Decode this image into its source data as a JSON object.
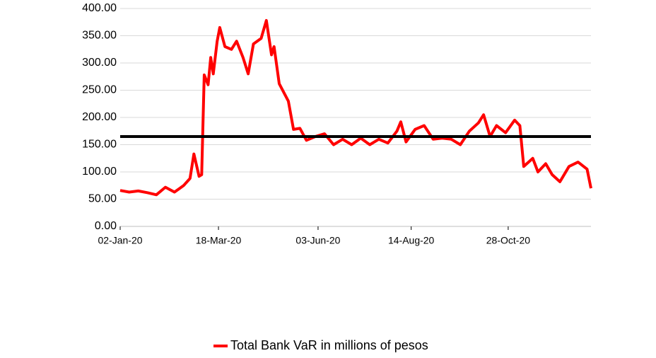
{
  "chart_data": {
    "type": "line",
    "x": [
      "2020-01-02",
      "2020-01-09",
      "2020-01-16",
      "2020-01-23",
      "2020-01-30",
      "2020-02-06",
      "2020-02-13",
      "2020-02-20",
      "2020-02-25",
      "2020-02-28",
      "2020-03-03",
      "2020-03-05",
      "2020-03-07",
      "2020-03-10",
      "2020-03-12",
      "2020-03-14",
      "2020-03-17",
      "2020-03-19",
      "2020-03-23",
      "2020-03-28",
      "2020-04-01",
      "2020-04-06",
      "2020-04-10",
      "2020-04-14",
      "2020-04-20",
      "2020-04-24",
      "2020-04-28",
      "2020-04-30",
      "2020-05-04",
      "2020-05-11",
      "2020-05-15",
      "2020-05-20",
      "2020-05-25",
      "2020-06-01",
      "2020-06-08",
      "2020-06-15",
      "2020-06-22",
      "2020-06-29",
      "2020-07-06",
      "2020-07-13",
      "2020-07-20",
      "2020-07-27",
      "2020-08-03",
      "2020-08-06",
      "2020-08-10",
      "2020-08-17",
      "2020-08-24",
      "2020-08-31",
      "2020-09-07",
      "2020-09-14",
      "2020-09-21",
      "2020-09-28",
      "2020-10-05",
      "2020-10-09",
      "2020-10-14",
      "2020-10-19",
      "2020-10-26",
      "2020-11-02",
      "2020-11-06",
      "2020-11-09",
      "2020-11-16",
      "2020-11-20",
      "2020-11-26",
      "2020-12-01",
      "2020-12-07",
      "2020-12-14",
      "2020-12-21",
      "2020-12-28",
      "2020-12-31"
    ],
    "series": [
      {
        "name": "Total Bank VaR in millions of pesos",
        "color": "#ff0000",
        "values": [
          66,
          63,
          65,
          62,
          58,
          72,
          63,
          75,
          88,
          133,
          92,
          95,
          278,
          260,
          310,
          280,
          340,
          365,
          330,
          325,
          340,
          310,
          280,
          335,
          345,
          378,
          315,
          330,
          262,
          230,
          178,
          180,
          158,
          165,
          170,
          150,
          160,
          150,
          162,
          150,
          160,
          153,
          175,
          192,
          155,
          178,
          185,
          160,
          162,
          160,
          150,
          175,
          190,
          205,
          165,
          185,
          172,
          195,
          185,
          110,
          125,
          100,
          115,
          95,
          82,
          110,
          118,
          105,
          70
        ]
      }
    ],
    "reference_line": {
      "value": 165,
      "color": "#000000"
    },
    "xlim": [
      "2020-01-02",
      "2020-12-31"
    ],
    "xticks": [
      {
        "value": "2020-01-02",
        "label": "02-Jan-20"
      },
      {
        "value": "2020-03-18",
        "label": "18-Mar-20"
      },
      {
        "value": "2020-06-03",
        "label": "03-Jun-20"
      },
      {
        "value": "2020-08-14",
        "label": "14-Aug-20"
      },
      {
        "value": "2020-10-28",
        "label": "28-Oct-20"
      }
    ],
    "ylim": [
      0,
      400
    ],
    "yticks": [
      {
        "value": 0,
        "label": "0.00"
      },
      {
        "value": 50,
        "label": "50.00"
      },
      {
        "value": 100,
        "label": "100.00"
      },
      {
        "value": 150,
        "label": "150.00"
      },
      {
        "value": 200,
        "label": "200.00"
      },
      {
        "value": 250,
        "label": "250.00"
      },
      {
        "value": 300,
        "label": "300.00"
      },
      {
        "value": 350,
        "label": "350.00"
      },
      {
        "value": 400,
        "label": "400.00"
      }
    ],
    "grid": true,
    "legend": "bottom"
  }
}
